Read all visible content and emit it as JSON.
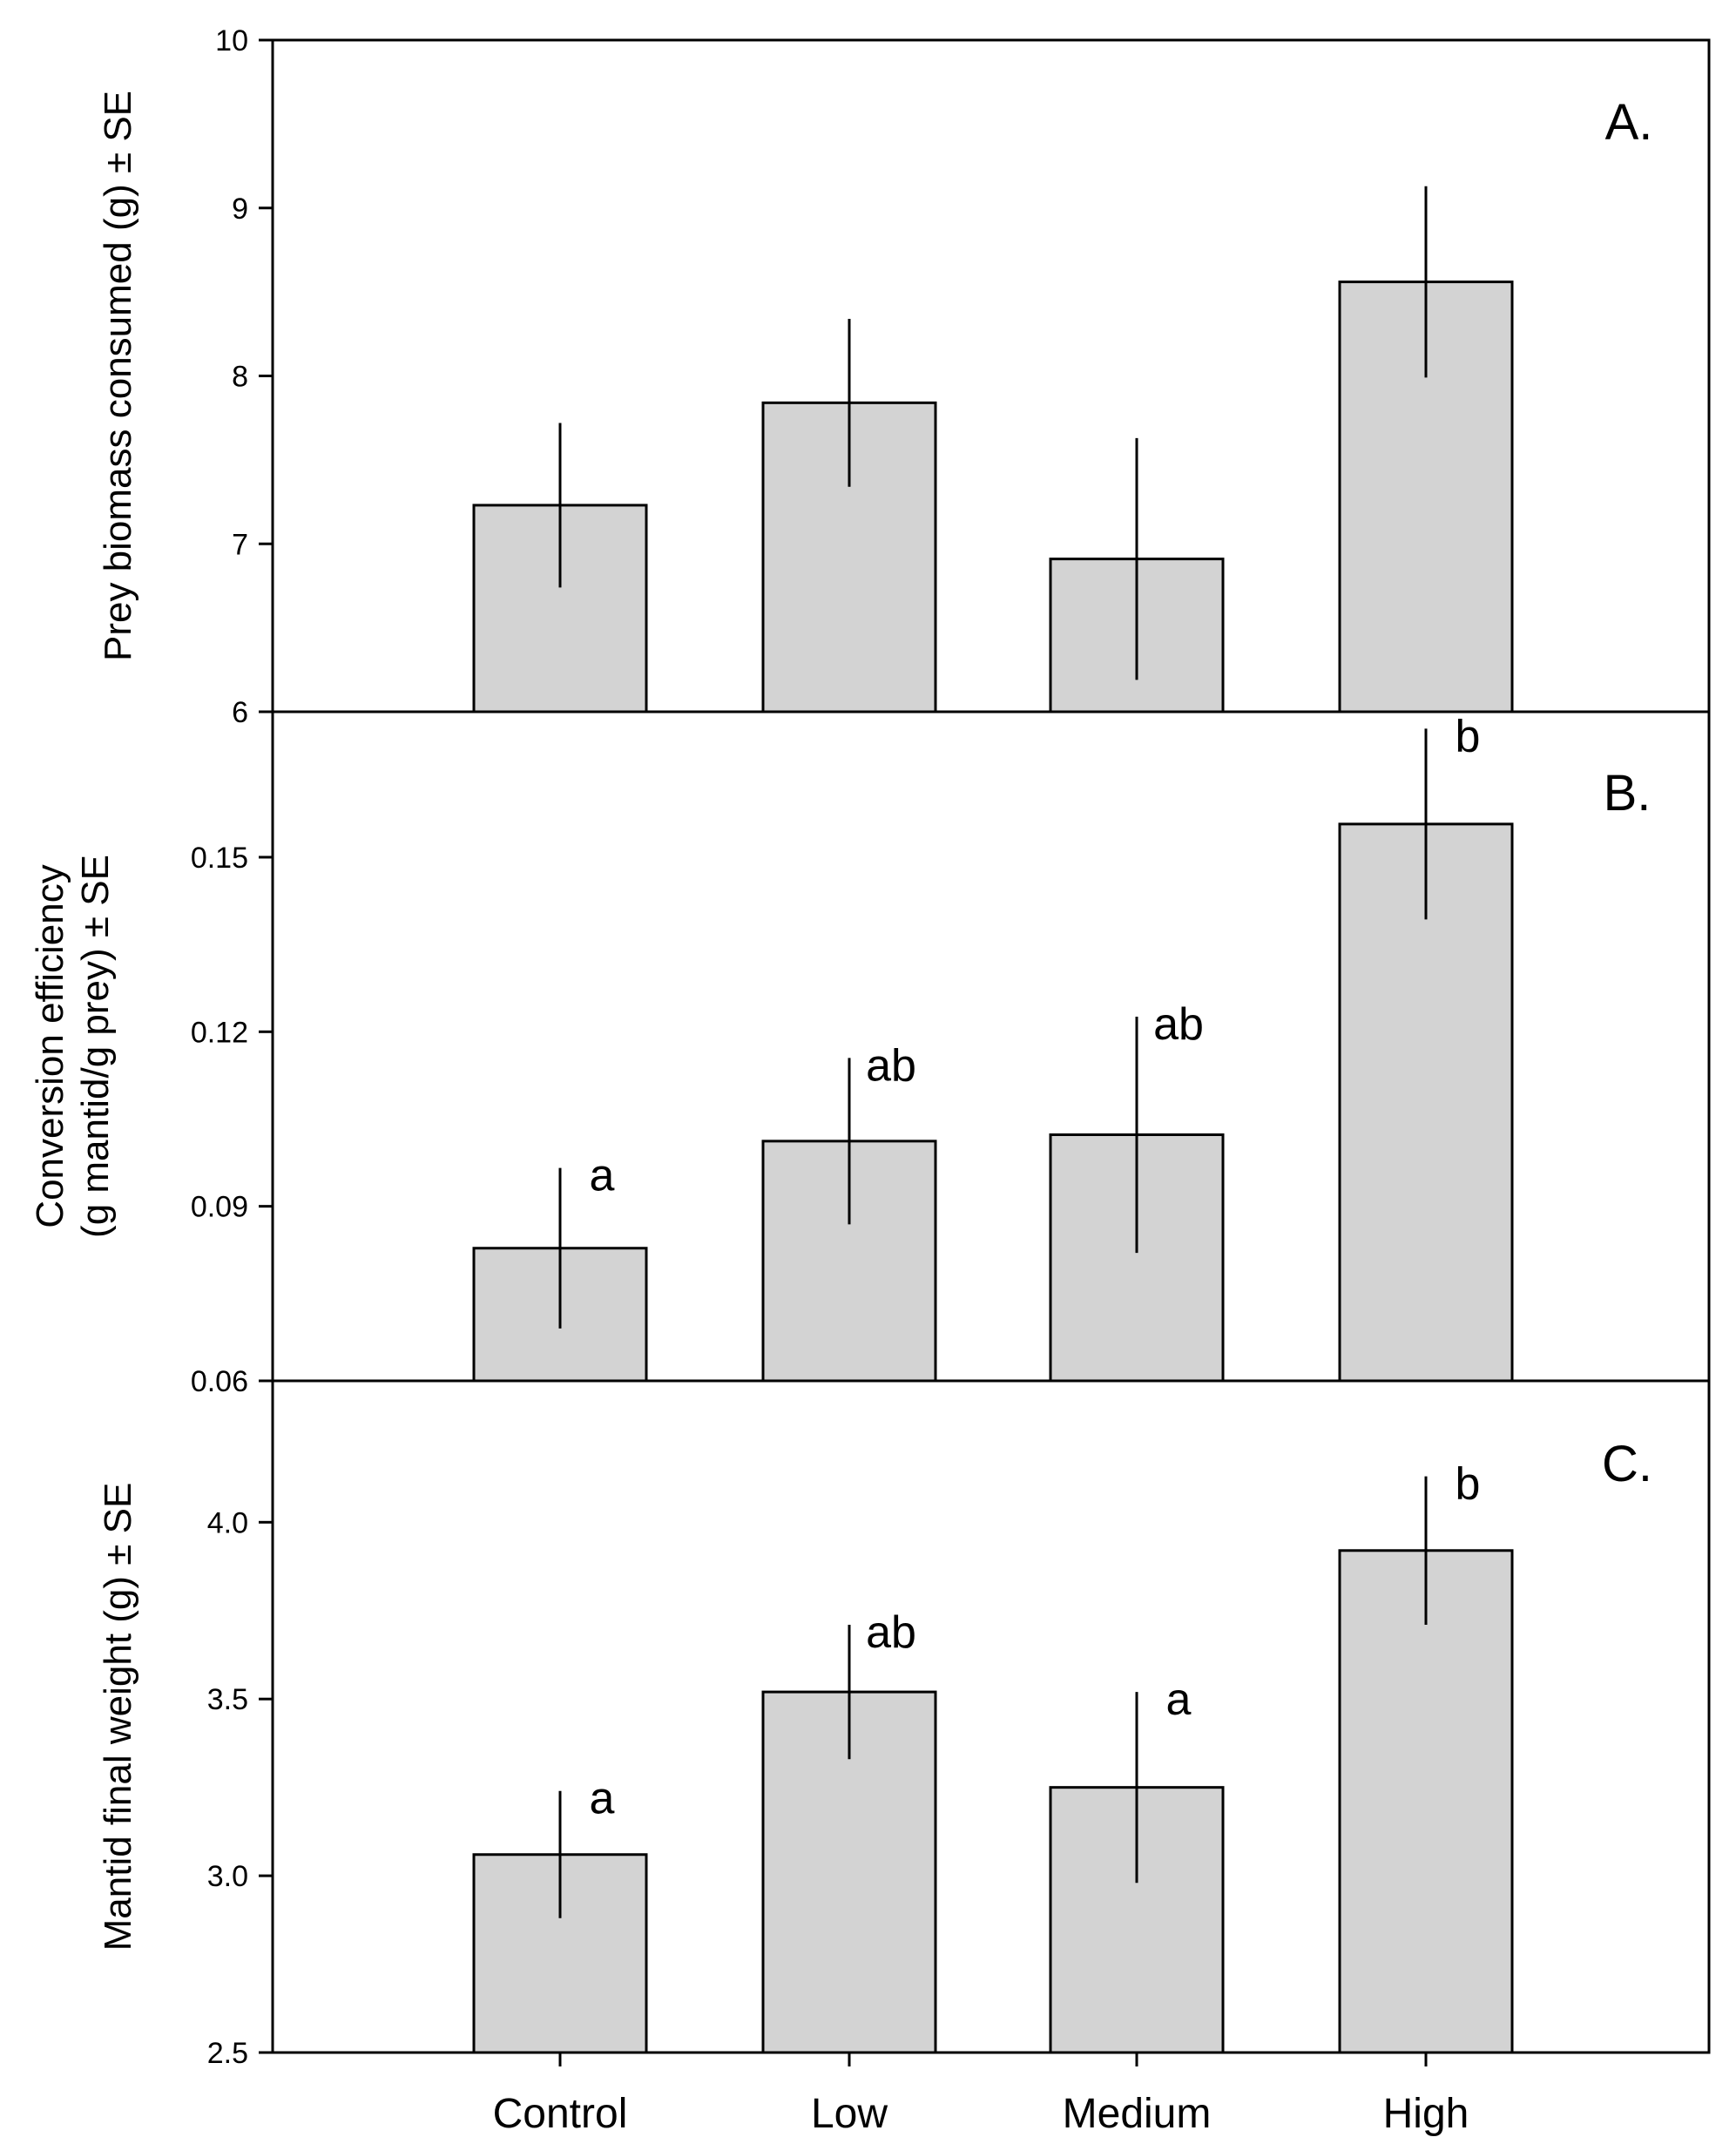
{
  "chart_data": [
    {
      "type": "bar",
      "panel_label": "A.",
      "categories": [
        "Control",
        "Low",
        "Medium",
        "High"
      ],
      "values": [
        7.23,
        7.84,
        6.91,
        8.56
      ],
      "errors": [
        0.49,
        0.5,
        0.72,
        0.57
      ],
      "letters": [
        "",
        "",
        "",
        ""
      ],
      "ylabel": "Prey biomass consumed (g) ± SE",
      "ylabel_lines": [
        "Prey biomass consumed (g) ± SE"
      ],
      "ylim": [
        6,
        10
      ],
      "yticks": [
        6,
        7,
        8,
        9,
        10
      ],
      "ytick_labels": [
        "6",
        "7",
        "8",
        "9",
        "10"
      ],
      "bar_color": "#d3d3d3"
    },
    {
      "type": "bar",
      "panel_label": "B.",
      "categories": [
        "Control",
        "Low",
        "Medium",
        "High"
      ],
      "values": [
        0.0828,
        0.1012,
        0.1023,
        0.1557
      ],
      "errors": [
        0.0138,
        0.0143,
        0.0203,
        0.0164
      ],
      "letters": [
        "a",
        "ab",
        "ab",
        "b"
      ],
      "ylabel": "Conversion efficiency (g mantid/g prey) ± SE",
      "ylabel_lines": [
        "Conversion efficiency",
        "(g mantid/g prey) ± SE"
      ],
      "ylim": [
        0.06,
        0.175
      ],
      "yticks": [
        0.06,
        0.09,
        0.12,
        0.15
      ],
      "ytick_labels": [
        "0.06",
        "0.09",
        "0.12",
        "0.15"
      ],
      "bar_color": "#d3d3d3"
    },
    {
      "type": "bar",
      "panel_label": "C.",
      "categories": [
        "Control",
        "Low",
        "Medium",
        "High"
      ],
      "values": [
        3.06,
        3.52,
        3.25,
        3.92
      ],
      "errors": [
        0.18,
        0.19,
        0.27,
        0.21
      ],
      "letters": [
        "a",
        "ab",
        "a",
        "b"
      ],
      "ylabel": "Mantid final weight (g) ± SE",
      "ylabel_lines": [
        "Mantid final weight (g) ± SE"
      ],
      "ylim": [
        2.5,
        4.4
      ],
      "yticks": [
        2.5,
        3.0,
        3.5,
        4.0
      ],
      "ytick_labels": [
        "2.5",
        "3.0",
        "3.5",
        "4.0"
      ],
      "bar_color": "#d3d3d3"
    }
  ],
  "x_axis": {
    "tick_labels": [
      "Control",
      "Low",
      "Medium",
      "High"
    ]
  }
}
